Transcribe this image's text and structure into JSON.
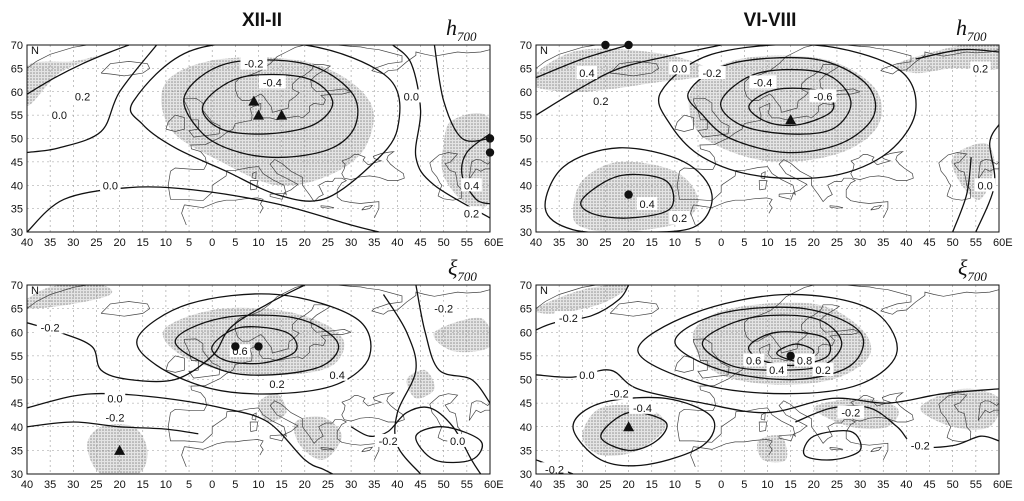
{
  "panels": [
    {
      "id": "winter-h700",
      "title": "XII-II",
      "variable": "h",
      "variable_sub": "700",
      "contour_labels": [
        {
          "text": "-0.2",
          "lon": 9,
          "lat": 66
        },
        {
          "text": "-0.4",
          "lon": 13,
          "lat": 62
        },
        {
          "text": "0.2",
          "lon": -28,
          "lat": 59
        },
        {
          "text": "0.0",
          "lon": -33,
          "lat": 55
        },
        {
          "text": "0.0",
          "lon": 43,
          "lat": 59
        },
        {
          "text": "0.0",
          "lon": -22,
          "lat": 40
        },
        {
          "text": "0.4",
          "lon": 56,
          "lat": 40
        },
        {
          "text": "0.2",
          "lon": 56,
          "lat": 34
        }
      ],
      "markers": [
        {
          "shape": "triangle",
          "lon": 9,
          "lat": 58
        },
        {
          "shape": "triangle",
          "lon": 10,
          "lat": 55
        },
        {
          "shape": "triangle",
          "lon": 15,
          "lat": 55
        },
        {
          "shape": "circle",
          "lon": 60,
          "lat": 50
        },
        {
          "shape": "circle",
          "lon": 60,
          "lat": 47
        }
      ]
    },
    {
      "id": "summer-h700",
      "title": "VI-VIII",
      "variable": "h",
      "variable_sub": "700",
      "contour_labels": [
        {
          "text": "0.0",
          "lon": -9,
          "lat": 65
        },
        {
          "text": "-0.2",
          "lon": -2,
          "lat": 64
        },
        {
          "text": "-0.4",
          "lon": 9,
          "lat": 62
        },
        {
          "text": "-0.6",
          "lon": 22,
          "lat": 59
        },
        {
          "text": "0.4",
          "lon": -29,
          "lat": 64
        },
        {
          "text": "0.2",
          "lon": -26,
          "lat": 58
        },
        {
          "text": "0.2",
          "lon": 56,
          "lat": 65
        },
        {
          "text": "0.4",
          "lon": -16,
          "lat": 36
        },
        {
          "text": "0.2",
          "lon": -9,
          "lat": 33
        },
        {
          "text": "0.0",
          "lon": 57,
          "lat": 40
        }
      ],
      "markers": [
        {
          "shape": "triangle",
          "lon": 15,
          "lat": 54
        },
        {
          "shape": "circle",
          "lon": -20,
          "lat": 38
        },
        {
          "shape": "circle",
          "lon": -25,
          "lat": 70
        },
        {
          "shape": "circle",
          "lon": -20,
          "lat": 70
        }
      ]
    },
    {
      "id": "winter-xi700",
      "title": "",
      "variable": "ξ",
      "variable_sub": "700",
      "contour_labels": [
        {
          "text": "-0.2",
          "lon": -35,
          "lat": 61
        },
        {
          "text": "0.6",
          "lon": 6,
          "lat": 56
        },
        {
          "text": "0.4",
          "lon": 27,
          "lat": 51
        },
        {
          "text": "0.2",
          "lon": 14,
          "lat": 49
        },
        {
          "text": "0.0",
          "lon": -21,
          "lat": 46
        },
        {
          "text": "-0.2",
          "lon": -21,
          "lat": 42
        },
        {
          "text": "-0.2",
          "lon": 50,
          "lat": 65
        },
        {
          "text": "-0.2",
          "lon": 38,
          "lat": 37
        },
        {
          "text": "0.0",
          "lon": 53,
          "lat": 37
        }
      ],
      "markers": [
        {
          "shape": "circle",
          "lon": 5,
          "lat": 57
        },
        {
          "shape": "circle",
          "lon": 10,
          "lat": 57
        },
        {
          "shape": "triangle",
          "lon": -20,
          "lat": 35
        }
      ]
    },
    {
      "id": "summer-xi700",
      "title": "",
      "variable": "ξ",
      "variable_sub": "700",
      "contour_labels": [
        {
          "text": "-0.2",
          "lon": -33,
          "lat": 63
        },
        {
          "text": "0.6",
          "lon": 7,
          "lat": 54
        },
        {
          "text": "0.4",
          "lon": 12,
          "lat": 52
        },
        {
          "text": "0.8",
          "lon": 18,
          "lat": 54
        },
        {
          "text": "0.2",
          "lon": 22,
          "lat": 52
        },
        {
          "text": "0.0",
          "lon": -29,
          "lat": 51
        },
        {
          "text": "-0.2",
          "lon": -22,
          "lat": 47
        },
        {
          "text": "-0.4",
          "lon": -17,
          "lat": 44
        },
        {
          "text": "-0.2",
          "lon": 28,
          "lat": 43
        },
        {
          "text": "-0.2",
          "lon": 43,
          "lat": 36
        },
        {
          "text": "-0.2",
          "lon": -36,
          "lat": 31
        }
      ],
      "markers": [
        {
          "shape": "circle",
          "lon": 15,
          "lat": 55
        },
        {
          "shape": "triangle",
          "lon": -20,
          "lat": 40
        }
      ]
    }
  ],
  "axes": {
    "lat_ticks": [
      30,
      35,
      40,
      45,
      50,
      55,
      60,
      65,
      70
    ],
    "lon_ticks": [
      -40,
      -35,
      -30,
      -25,
      -20,
      -15,
      -10,
      -5,
      0,
      5,
      10,
      15,
      20,
      25,
      30,
      35,
      40,
      45,
      50,
      55,
      60
    ],
    "lat_unit_label": "N",
    "lon_unit_label": "E"
  }
}
